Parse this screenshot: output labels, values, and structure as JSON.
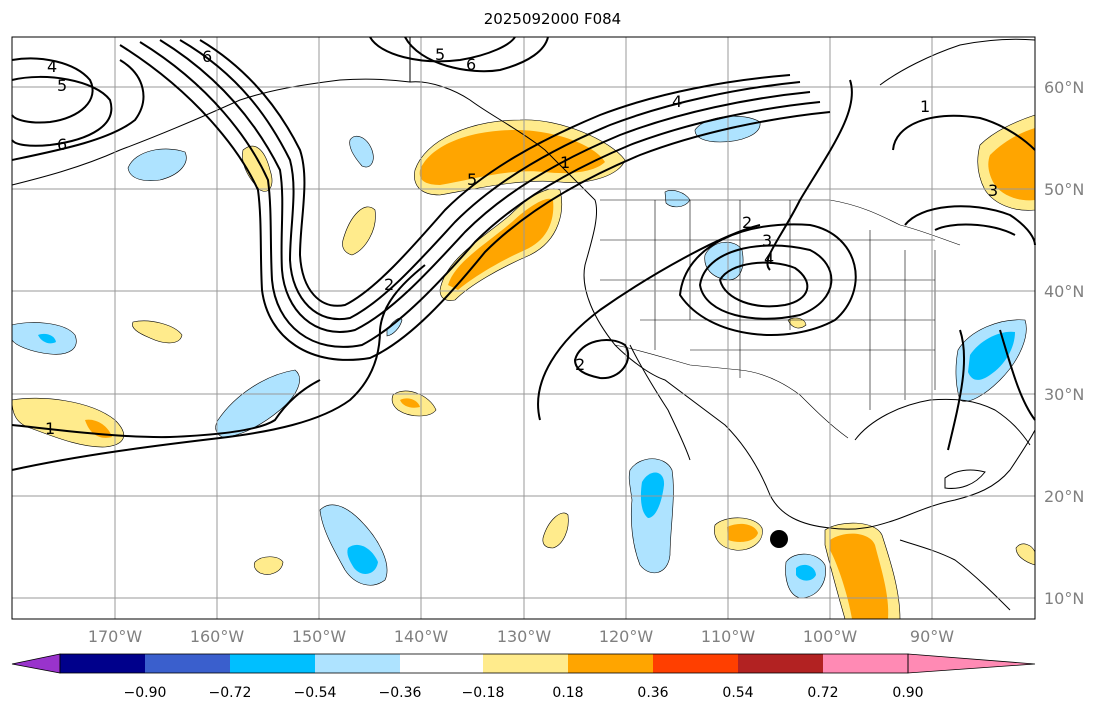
{
  "title": "2025092000 F084",
  "lat_labels": [
    "60°N",
    "50°N",
    "40°N",
    "30°N",
    "20°N",
    "10°N"
  ],
  "lon_labels": [
    "170°W",
    "160°W",
    "150°W",
    "140°W",
    "130°W",
    "120°W",
    "110°W",
    "100°W",
    "90°W"
  ],
  "colorbar": {
    "ticks": [
      "−0.90",
      "−0.72",
      "−0.54",
      "−0.36",
      "−0.18",
      "0.18",
      "0.36",
      "0.54",
      "0.72",
      "0.90"
    ],
    "colors": [
      "#9933cc",
      "#00008b",
      "#3a5fcd",
      "#00bfff",
      "#aee3ff",
      "#ffffff",
      "#ffeb8c",
      "#ffa500",
      "#ff3f00",
      "#b22222",
      "#ff8ab4"
    ]
  },
  "colors": {
    "text": "#000000",
    "axis_label": "#808080",
    "grid": "#999999",
    "marker": "#000000"
  },
  "contour_labels": {
    "l1": "1",
    "l2": "2",
    "l3": "3",
    "l4": "4",
    "l5": "5",
    "l6": "6"
  }
}
